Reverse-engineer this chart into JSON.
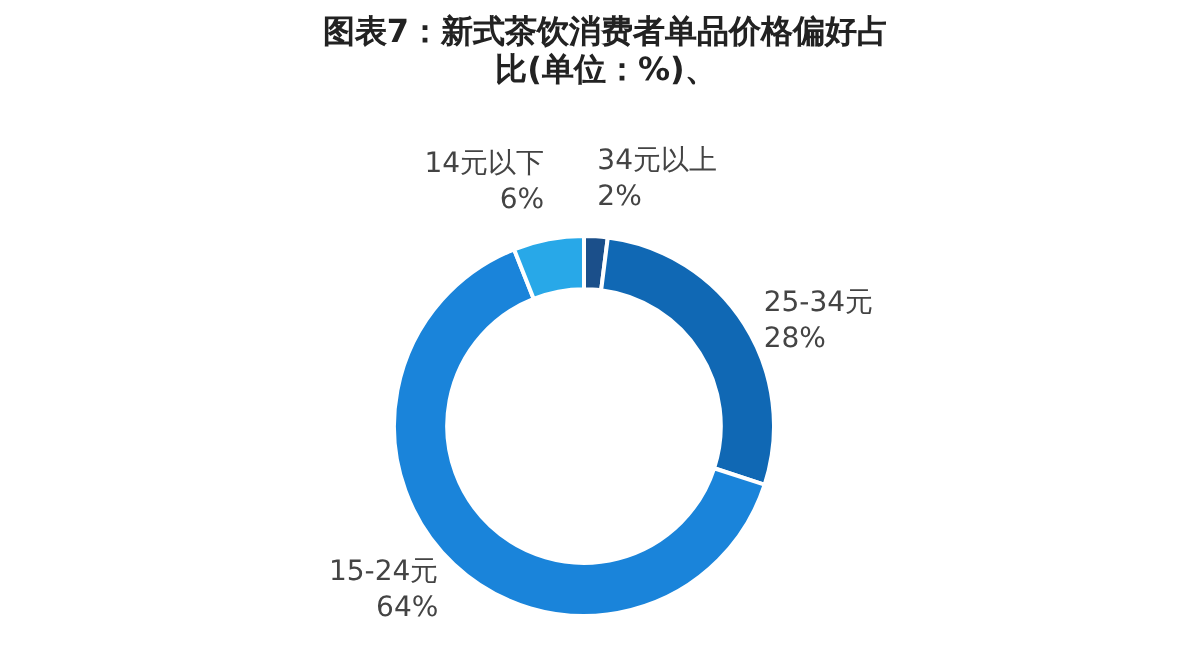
{
  "chart_data": {
    "type": "donut",
    "title": "图表7：新式茶饮消费者单品价格偏好占比(单位：%)、",
    "categories": [
      "34元以上",
      "25-34元",
      "15-24元",
      "14元以下"
    ],
    "values": [
      2,
      28,
      64,
      6
    ],
    "colors": [
      "#1b4f8a",
      "#1068b4",
      "#1a84da",
      "#28a8e8"
    ],
    "value_labels": [
      "2%",
      "28%",
      "64%",
      "6%"
    ],
    "legend": false
  }
}
